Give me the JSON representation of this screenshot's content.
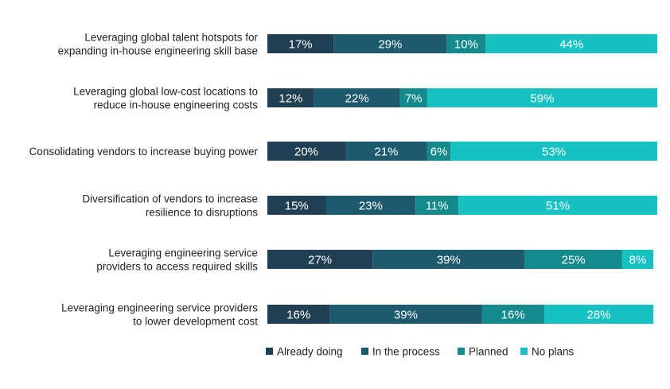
{
  "chart_data": {
    "type": "bar",
    "orientation": "horizontal",
    "stacked": true,
    "categories": [
      [
        "Leveraging global talent hotspots for",
        "expanding in-house engineering skill base"
      ],
      [
        "Leveraging global low-cost locations to",
        "reduce in-house engineering costs"
      ],
      [
        "Consolidating vendors to increase buying power"
      ],
      [
        "Diversification of vendors to increase",
        "resilience to disruptions"
      ],
      [
        "Leveraging engineering service",
        "providers to access required skills"
      ],
      [
        "Leveraging engineering service providers",
        "to lower development cost"
      ]
    ],
    "series": [
      {
        "name": "Already doing",
        "color": "#213f52",
        "values": [
          17,
          12,
          20,
          15,
          27,
          16
        ],
        "labels": [
          "17%",
          "12%",
          "20%",
          "15%",
          "27%",
          "16%"
        ]
      },
      {
        "name": "In the process",
        "color": "#1d5a6d",
        "values": [
          29,
          22,
          21,
          23,
          39,
          39
        ],
        "labels": [
          "29%",
          "22%",
          "21%",
          "23%",
          "39%",
          "39%"
        ]
      },
      {
        "name": "Planned",
        "color": "#158a8c",
        "values": [
          10,
          7,
          6,
          11,
          25,
          16
        ],
        "labels": [
          "10%",
          "7%",
          "6%",
          "11%",
          "25%",
          "16%"
        ]
      },
      {
        "name": "No plans",
        "color": "#17c0c1",
        "values": [
          44,
          59,
          53,
          51,
          8,
          28
        ],
        "labels": [
          "44%",
          "59%",
          "53%",
          "51%",
          "8%",
          "28%"
        ]
      }
    ],
    "xlim": [
      0,
      100
    ],
    "grid": false,
    "legend": "bottom"
  }
}
